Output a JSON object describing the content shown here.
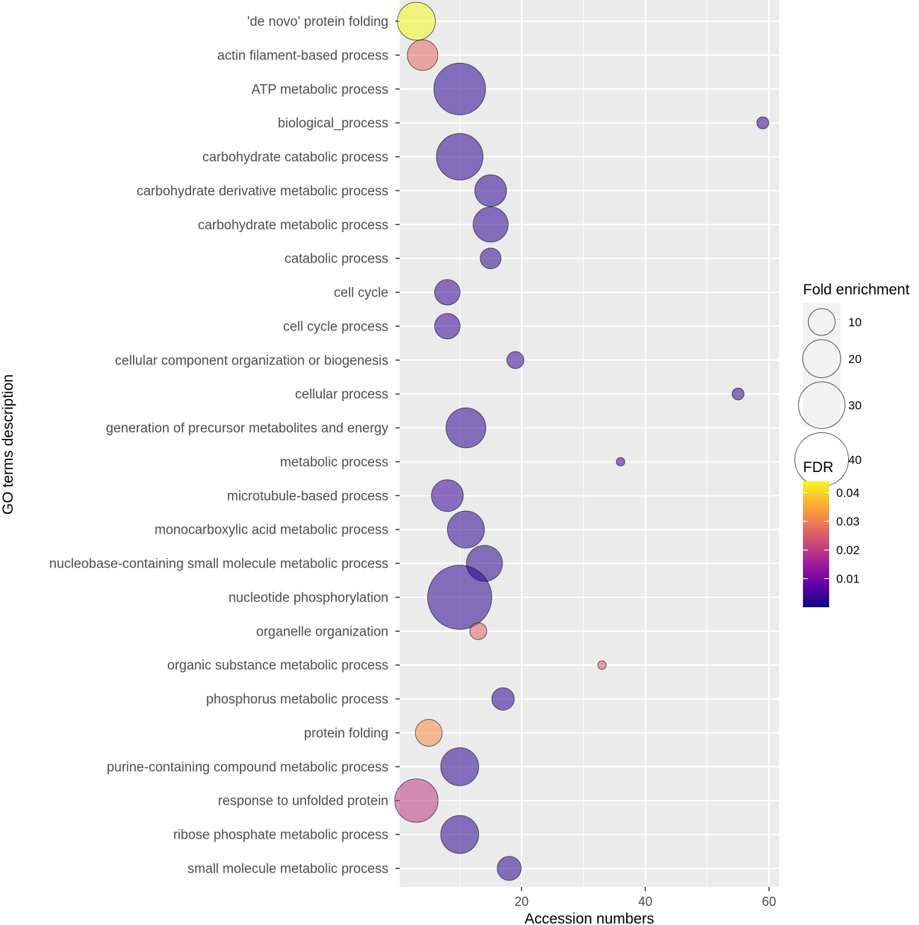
{
  "chart_data": {
    "type": "scatter",
    "title": "",
    "xlabel": "Accession numbers",
    "ylabel": "GO terms description",
    "xlim": [
      0.3,
      61.6
    ],
    "x_ticks": [
      20,
      40,
      60
    ],
    "categories": [
      "'de novo' protein folding",
      "actin filament-based process",
      "ATP metabolic process",
      "biological_process",
      "carbohydrate catabolic process",
      "carbohydrate derivative metabolic process",
      "carbohydrate metabolic process",
      "catabolic process",
      "cell cycle",
      "cell cycle process",
      "cellular component organization or biogenesis",
      "cellular process",
      "generation of precursor metabolites and energy",
      "metabolic process",
      "microtubule-based process",
      "monocarboxylic acid metabolic process",
      "nucleobase-containing small molecule metabolic process",
      "nucleotide phosphorylation",
      "organelle organization",
      "organic substance metabolic process",
      "phosphorus metabolic process",
      "protein folding",
      "purine-containing compound metabolic process",
      "response to unfolded protein",
      "ribose phosphate metabolic process",
      "small molecule metabolic process"
    ],
    "points": [
      {
        "term": "'de novo' protein folding",
        "x": 3,
        "fold_enrichment": 20,
        "fdr": 0.044
      },
      {
        "term": "actin filament-based process",
        "x": 4,
        "fold_enrichment": 13,
        "fdr": 0.027
      },
      {
        "term": "ATP metabolic process",
        "x": 10,
        "fold_enrichment": 37,
        "fdr": 0.003
      },
      {
        "term": "biological_process",
        "x": 59,
        "fold_enrichment": 2,
        "fdr": 0.003
      },
      {
        "term": "carbohydrate catabolic process",
        "x": 10,
        "fold_enrichment": 30,
        "fdr": 0.003
      },
      {
        "term": "carbohydrate derivative metabolic process",
        "x": 15,
        "fold_enrichment": 14,
        "fdr": 0.003
      },
      {
        "term": "carbohydrate metabolic process",
        "x": 15,
        "fold_enrichment": 17,
        "fdr": 0.003
      },
      {
        "term": "catabolic process",
        "x": 15,
        "fold_enrichment": 6,
        "fdr": 0.003
      },
      {
        "term": "cell cycle",
        "x": 8,
        "fold_enrichment": 9,
        "fdr": 0.004
      },
      {
        "term": "cell cycle process",
        "x": 8,
        "fold_enrichment": 9,
        "fdr": 0.004
      },
      {
        "term": "cellular component organization or biogenesis",
        "x": 19,
        "fold_enrichment": 4,
        "fdr": 0.004
      },
      {
        "term": "cellular process",
        "x": 55,
        "fold_enrichment": 2,
        "fdr": 0.003
      },
      {
        "term": "generation of precursor metabolites and energy",
        "x": 11,
        "fold_enrichment": 22,
        "fdr": 0.003
      },
      {
        "term": "metabolic process",
        "x": 36,
        "fold_enrichment": 1,
        "fdr": 0.004
      },
      {
        "term": "microtubule-based process",
        "x": 8,
        "fold_enrichment": 14,
        "fdr": 0.004
      },
      {
        "term": "monocarboxylic acid metabolic process",
        "x": 11,
        "fold_enrichment": 19,
        "fdr": 0.003
      },
      {
        "term": "nucleobase-containing small molecule metabolic process",
        "x": 14,
        "fold_enrichment": 18,
        "fdr": 0.003
      },
      {
        "term": "nucleotide phosphorylation",
        "x": 10,
        "fold_enrichment": 57,
        "fdr": 0.003
      },
      {
        "term": "organelle organization",
        "x": 13,
        "fold_enrichment": 4,
        "fdr": 0.026
      },
      {
        "term": "organic substance metabolic process",
        "x": 33,
        "fold_enrichment": 1,
        "fdr": 0.024
      },
      {
        "term": "phosphorus metabolic process",
        "x": 17,
        "fold_enrichment": 7,
        "fdr": 0.003
      },
      {
        "term": "protein folding",
        "x": 5,
        "fold_enrichment": 10,
        "fdr": 0.032
      },
      {
        "term": "purine-containing compound metabolic process",
        "x": 10,
        "fold_enrichment": 20,
        "fdr": 0.003
      },
      {
        "term": "response to unfolded protein",
        "x": 3,
        "fold_enrichment": 26,
        "fdr": 0.02
      },
      {
        "term": "ribose phosphate metabolic process",
        "x": 10,
        "fold_enrichment": 20,
        "fdr": 0.003
      },
      {
        "term": "small molecule metabolic process",
        "x": 18,
        "fold_enrichment": 8,
        "fdr": 0.003
      }
    ],
    "size_legend": {
      "title": "Fold enrichment",
      "breaks": [
        10,
        20,
        30,
        40
      ]
    },
    "color_legend": {
      "title": "FDR",
      "range": [
        0.0,
        0.044
      ],
      "breaks": [
        0.01,
        0.02,
        0.03,
        0.04
      ],
      "break_labels": [
        "0.01",
        "0.02",
        "0.03",
        "0.04"
      ],
      "palette": [
        "#0d0887",
        "#5c01a6",
        "#9c179e",
        "#cc4778",
        "#ed7953",
        "#fdb42f",
        "#f0f921"
      ]
    },
    "point_alpha": 0.55
  }
}
